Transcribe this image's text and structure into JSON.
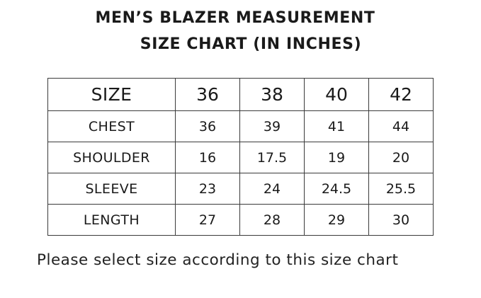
{
  "title": {
    "line1": "MEN’S BLAZER MEASUREMENT",
    "line2": "SIZE CHART (IN INCHES)"
  },
  "table": {
    "header": {
      "label": "SIZE",
      "sizes": [
        "36",
        "38",
        "40",
        "42"
      ]
    },
    "rows": [
      {
        "label": "CHEST",
        "values": [
          "36",
          "39",
          "41",
          "44"
        ]
      },
      {
        "label": "SHOULDER",
        "values": [
          "16",
          "17.5",
          "19",
          "20"
        ]
      },
      {
        "label": "SLEEVE",
        "values": [
          "23",
          "24",
          "24.5",
          "25.5"
        ]
      },
      {
        "label": "LENGTH",
        "values": [
          "27",
          "28",
          "29",
          "30"
        ]
      }
    ]
  },
  "footer": {
    "note": "Please select size according to this size chart"
  }
}
